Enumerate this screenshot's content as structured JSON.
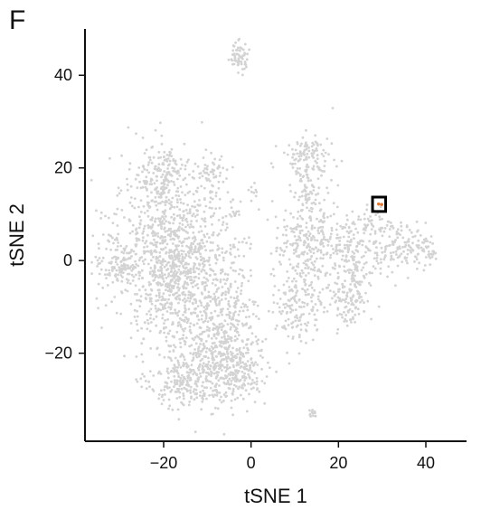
{
  "panel_label": "F",
  "chart_data": {
    "type": "scatter",
    "title": "",
    "xlabel": "tSNE 1",
    "ylabel": "tSNE 2",
    "xlim": [
      -38,
      46
    ],
    "ylim": [
      -39,
      50
    ],
    "xticks": [
      -20,
      0,
      20,
      40
    ],
    "xtick_labels": [
      "−20",
      "0",
      "20",
      "40"
    ],
    "yticks": [
      -20,
      0,
      20,
      40
    ],
    "ytick_labels": [
      "−20",
      "0",
      "20",
      "40"
    ],
    "grid": false,
    "colors": {
      "background_points": "#d3d3d3",
      "highlight": "#e07b39",
      "box": "#000000",
      "axis": "#111111"
    },
    "series": [
      {
        "role": "background",
        "clusters": [
          {
            "center": [
              -18,
              2
            ],
            "spread": [
              8,
              11
            ],
            "n": 900
          },
          {
            "center": [
              -30,
              0
            ],
            "spread": [
              3.5,
              4
            ],
            "n": 120
          },
          {
            "center": [
              -20,
              18
            ],
            "spread": [
              3,
              4
            ],
            "n": 140
          },
          {
            "center": [
              -9,
              19
            ],
            "spread": [
              2,
              2
            ],
            "n": 40
          },
          {
            "center": [
              -17,
              -5
            ],
            "spread": [
              5,
              6
            ],
            "n": 200
          },
          {
            "center": [
              -5,
              -15
            ],
            "spread": [
              4,
              9
            ],
            "n": 330
          },
          {
            "center": [
              -13,
              -20
            ],
            "spread": [
              5,
              7
            ],
            "n": 250
          },
          {
            "center": [
              -3,
              -24
            ],
            "spread": [
              4,
              4
            ],
            "n": 170
          },
          {
            "center": [
              -15,
              -26
            ],
            "spread": [
              5,
              3
            ],
            "n": 150
          },
          {
            "center": [
              -3,
              44
            ],
            "spread": [
              1.5,
              2
            ],
            "n": 60
          },
          {
            "center": [
              1,
              15
            ],
            "spread": [
              0.6,
              0.8
            ],
            "n": 8
          },
          {
            "center": [
              -4,
              10
            ],
            "spread": [
              1.2,
              0.6
            ],
            "n": 12
          },
          {
            "center": [
              -5,
              2
            ],
            "spread": [
              1,
              1
            ],
            "n": 8
          },
          {
            "center": [
              13,
              22
            ],
            "spread": [
              3.5,
              3
            ],
            "n": 130
          },
          {
            "center": [
              13,
              14
            ],
            "spread": [
              2,
              2
            ],
            "n": 50
          },
          {
            "center": [
              12,
              5
            ],
            "spread": [
              4,
              4
            ],
            "n": 150
          },
          {
            "center": [
              11,
              -7
            ],
            "spread": [
              3,
              7
            ],
            "n": 200
          },
          {
            "center": [
              23,
              2
            ],
            "spread": [
              5,
              5
            ],
            "n": 220
          },
          {
            "center": [
              22,
              -9
            ],
            "spread": [
              3,
              4
            ],
            "n": 120
          },
          {
            "center": [
              34,
              3
            ],
            "spread": [
              3.5,
              3
            ],
            "n": 110
          },
          {
            "center": [
              40,
              2
            ],
            "spread": [
              1.5,
              2
            ],
            "n": 35
          },
          {
            "center": [
              29,
              8
            ],
            "spread": [
              2,
              2
            ],
            "n": 30
          },
          {
            "center": [
              14,
              -33
            ],
            "spread": [
              0.7,
              0.7
            ],
            "n": 12
          }
        ]
      },
      {
        "role": "highlight",
        "points": [
          [
            29.2,
            12.2
          ],
          [
            29.9,
            12.1
          ]
        ]
      }
    ],
    "annotations": [
      {
        "type": "box",
        "x": [
          27.8,
          30.8
        ],
        "y": [
          10.6,
          13.7
        ]
      }
    ]
  }
}
